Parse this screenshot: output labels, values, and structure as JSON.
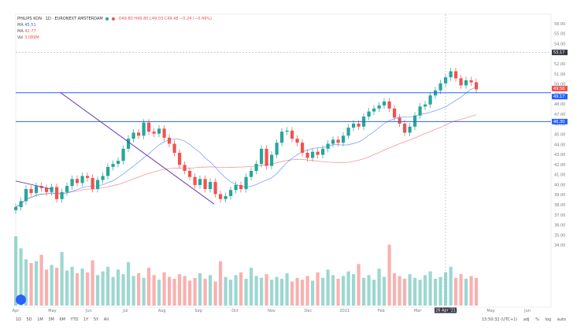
{
  "header": {
    "symbol": "PHILIPS KON · 1D · EURONEXT AMSTERDAM",
    "ohlc": "O49.80 H49.80 L49.03 C49.48 −0.24 (−0.49%)",
    "indicators": [
      {
        "label": "MA",
        "value": "45.51",
        "color": "#2962ff"
      },
      {
        "label": "MA",
        "value": "42.77",
        "color": "#ef5350"
      },
      {
        "label": "Vol",
        "value": "3.089M",
        "color": "#ef5350"
      }
    ]
  },
  "timeframes": [
    "1D",
    "5D",
    "1M",
    "3M",
    "6M",
    "YTD",
    "1Y",
    "5Y",
    "All"
  ],
  "status": {
    "time": "15:50:32 (UTC+1)",
    "percent": "%",
    "log": "log",
    "auto": "auto",
    "adj": "adj"
  },
  "crosshair": {
    "date": "26 Apr '21",
    "price": "53.17"
  },
  "price_tags": [
    {
      "value": "49.58",
      "color": "#ef5350"
    },
    {
      "value": "49.17",
      "color": "#2962ff"
    },
    {
      "value": "46.30",
      "color": "#2962ff"
    }
  ],
  "colors": {
    "up": "#26a69a",
    "down": "#ef5350",
    "ma1": "#2962ff",
    "ma2": "#ef5350",
    "trend": "#673ab7",
    "hline": "#2962ff"
  },
  "chart_data": {
    "type": "candlestick",
    "x_ticks": [
      "Apr",
      "May",
      "Jun",
      "Jul",
      "Aug",
      "Sep",
      "Oct",
      "Nov",
      "Dec",
      "2021",
      "Feb",
      "Mar",
      "Apr",
      "May",
      "Jun"
    ],
    "y_ticks": [
      "34.00",
      "35.00",
      "36.00",
      "37.00",
      "38.00",
      "39.00",
      "40.00",
      "41.00",
      "42.00",
      "43.00",
      "44.00",
      "45.00",
      "46.00",
      "47.00",
      "48.00",
      "49.00",
      "50.00",
      "51.00",
      "52.00",
      "53.00",
      "54.00",
      "55.00",
      "56.00"
    ],
    "ylim": [
      33.5,
      56.5
    ],
    "horizontal_lines": [
      49.17,
      46.3
    ],
    "trendlines": [
      {
        "from": [
          "Sep",
          38.1
        ],
        "to": [
          "May",
          49.2
        ],
        "color": "#673ab7"
      },
      {
        "from": [
          "Apr",
          40.4
        ],
        "to": [
          "Jun",
          39.0
        ],
        "color": "#673ab7"
      }
    ],
    "close_series": [
      37.8,
      38.4,
      39.6,
      39.2,
      39.9,
      39.7,
      39.3,
      39.8,
      38.6,
      39.3,
      39.9,
      40.6,
      40.2,
      40.9,
      40.7,
      39.6,
      40.5,
      40.9,
      41.8,
      42.1,
      42.4,
      43.6,
      44.6,
      45.2,
      44.9,
      46.2,
      45.3,
      45.1,
      45.6,
      44.7,
      44.1,
      43.2,
      42.0,
      41.4,
      40.8,
      40.0,
      40.6,
      39.6,
      40.3,
      39.1,
      38.6,
      38.9,
      39.5,
      40.0,
      39.6,
      40.8,
      41.4,
      42.1,
      43.6,
      41.9,
      43.0,
      44.2,
      45.3,
      45.4,
      44.6,
      44.2,
      43.2,
      42.7,
      43.3,
      43.0,
      43.6,
      44.1,
      44.5,
      44.2,
      44.9,
      45.7,
      46.1,
      45.8,
      46.8,
      47.3,
      47.6,
      47.9,
      48.3,
      47.6,
      46.7,
      46.1,
      45.2,
      45.8,
      46.9,
      47.8,
      48.0,
      48.9,
      49.4,
      50.1,
      50.7,
      51.3,
      50.6,
      49.9,
      50.4,
      50.2,
      49.5
    ],
    "volume_series": [
      7.5,
      6.2,
      5.0,
      4.6,
      4.8,
      5.5,
      3.9,
      4.4,
      4.1,
      5.8,
      3.8,
      4.2,
      3.5,
      4.0,
      3.6,
      4.9,
      3.3,
      3.7,
      4.2,
      3.1,
      3.9,
      3.4,
      4.7,
      3.2,
      3.5,
      3.0,
      4.1,
      3.3,
      2.8,
      3.6,
      3.1,
      2.9,
      3.4,
      3.2,
      2.7,
      3.0,
      3.5,
      2.9,
      3.3,
      2.6,
      4.8,
      3.1,
      2.8,
      3.3,
      3.6,
      2.9,
      4.1,
      3.2,
      3.0,
      3.4,
      2.8,
      3.1,
      2.9,
      3.5,
      2.6,
      3.0,
      2.8,
      3.2,
      2.7,
      3.6,
      3.0,
      3.9,
      3.3,
      2.9,
      3.2,
      3.7,
      3.4,
      4.5,
      3.0,
      3.3,
      2.8,
      4.0,
      3.1,
      6.6,
      3.5,
      3.2,
      2.9,
      3.4,
      3.0,
      2.8,
      3.3,
      3.7,
      2.9,
      3.1,
      3.6,
      4.2,
      3.0,
      3.4,
      2.9,
      3.2,
      3.0
    ]
  }
}
